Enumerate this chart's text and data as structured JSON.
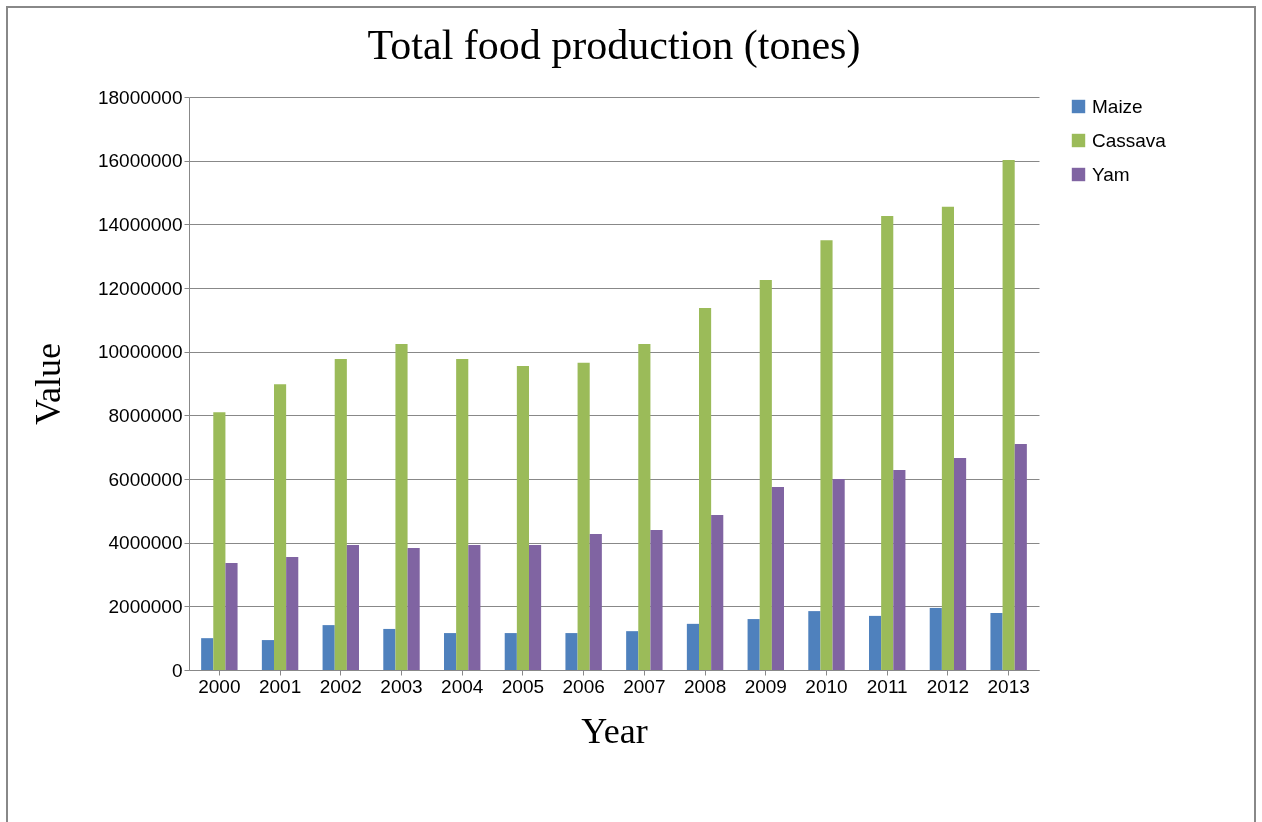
{
  "chart_data": {
    "type": "bar",
    "title": "Total food production (tones)",
    "xlabel": "Year",
    "ylabel": "Value",
    "categories": [
      "2000",
      "2001",
      "2002",
      "2003",
      "2004",
      "2005",
      "2006",
      "2007",
      "2008",
      "2009",
      "2010",
      "2011",
      "2012",
      "2013"
    ],
    "series": [
      {
        "name": "Maize",
        "color": "#4f81bd",
        "values": [
          1000000,
          940000,
          1410000,
          1290000,
          1160000,
          1160000,
          1160000,
          1220000,
          1450000,
          1600000,
          1850000,
          1700000,
          1950000,
          1790000
        ]
      },
      {
        "name": "Cassava",
        "color": "#9bbb59",
        "values": [
          8100000,
          8980000,
          9770000,
          10240000,
          9770000,
          9550000,
          9650000,
          10240000,
          11370000,
          12250000,
          13500000,
          14260000,
          14550000,
          16020000
        ]
      },
      {
        "name": "Yam",
        "color": "#8064a2",
        "values": [
          3360000,
          3550000,
          3930000,
          3830000,
          3930000,
          3930000,
          4270000,
          4400000,
          4870000,
          5750000,
          6000000,
          6280000,
          6660000,
          7100000
        ]
      }
    ],
    "ylim": [
      0,
      18000000
    ],
    "yticks": [
      0,
      2000000,
      4000000,
      6000000,
      8000000,
      10000000,
      12000000,
      14000000,
      16000000,
      18000000
    ],
    "grid": "y",
    "legend": "right"
  }
}
